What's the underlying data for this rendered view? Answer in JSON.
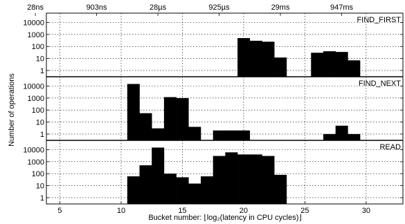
{
  "chart_data": {
    "type": "bar",
    "xlabel": "Bucket number: ⌊log₂(latency in CPU cycles)⌋",
    "ylabel": "Number of operations",
    "x_ticks": [
      5,
      10,
      15,
      20,
      25,
      30
    ],
    "top_ticks": [
      {
        "x": 3,
        "label": "28ns"
      },
      {
        "x": 8,
        "label": "903ns"
      },
      {
        "x": 13,
        "label": "28µs"
      },
      {
        "x": 18,
        "label": "925µs"
      },
      {
        "x": 23,
        "label": "29ms"
      },
      {
        "x": 28,
        "label": "947ms"
      }
    ],
    "xlim": [
      3.9,
      33
    ],
    "y_scale": "log",
    "ylim": [
      0.3,
      60000
    ],
    "y_ticks": [
      1,
      10,
      100,
      1000,
      10000
    ],
    "y_tick_labels": [
      "1",
      "10",
      "100",
      "1000",
      "10000"
    ],
    "grid": true,
    "panels": [
      {
        "title": "FIND_FIRST",
        "buckets": [
          20,
          21,
          22,
          23,
          26,
          27,
          28,
          29
        ],
        "values": [
          500,
          300,
          250,
          12,
          30,
          40,
          35,
          7
        ]
      },
      {
        "title": "FIND_NEXT",
        "buckets": [
          11,
          12,
          13,
          14,
          15,
          16,
          18,
          19,
          20,
          27,
          28,
          29
        ],
        "values": [
          15000,
          55,
          3,
          1200,
          1000,
          4,
          2,
          2,
          2,
          1,
          5,
          1
        ]
      },
      {
        "title": "READ",
        "buckets": [
          11,
          12,
          13,
          14,
          15,
          16,
          17,
          18,
          19,
          20,
          21,
          22,
          23
        ],
        "values": [
          60,
          500,
          15000,
          100,
          50,
          15,
          60,
          3000,
          6000,
          4000,
          4000,
          3000,
          80
        ]
      }
    ]
  }
}
